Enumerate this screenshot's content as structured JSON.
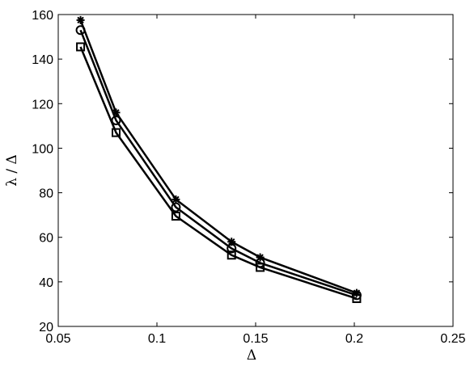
{
  "chart_data": {
    "type": "line",
    "xlabel": "Δ",
    "ylabel": "λ / Δ",
    "xlim": [
      0.05,
      0.25
    ],
    "ylim": [
      20,
      160
    ],
    "xticks": [
      0.05,
      0.1,
      0.15,
      0.2,
      0.25
    ],
    "xtick_labels": [
      "0.05",
      "0.1",
      "0.15",
      "0.2",
      "0.25"
    ],
    "yticks": [
      20,
      40,
      60,
      80,
      100,
      120,
      140,
      160
    ],
    "ytick_labels": [
      "20",
      "40",
      "60",
      "80",
      "100",
      "120",
      "140",
      "160"
    ],
    "grid": false,
    "legend": false,
    "x": [
      0.0613,
      0.0793,
      0.1096,
      0.1378,
      0.1523,
      0.2012
    ],
    "series": [
      {
        "marker": "asterisk",
        "color": "#000000",
        "values": [
          157.5,
          116.0,
          77.0,
          58.0,
          51.0,
          35.0
        ]
      },
      {
        "marker": "circle",
        "color": "#000000",
        "values": [
          153.0,
          112.5,
          73.5,
          55.0,
          48.5,
          34.0
        ]
      },
      {
        "marker": "square",
        "color": "#000000",
        "values": [
          145.5,
          107.0,
          69.5,
          52.0,
          46.5,
          32.5
        ]
      }
    ]
  }
}
